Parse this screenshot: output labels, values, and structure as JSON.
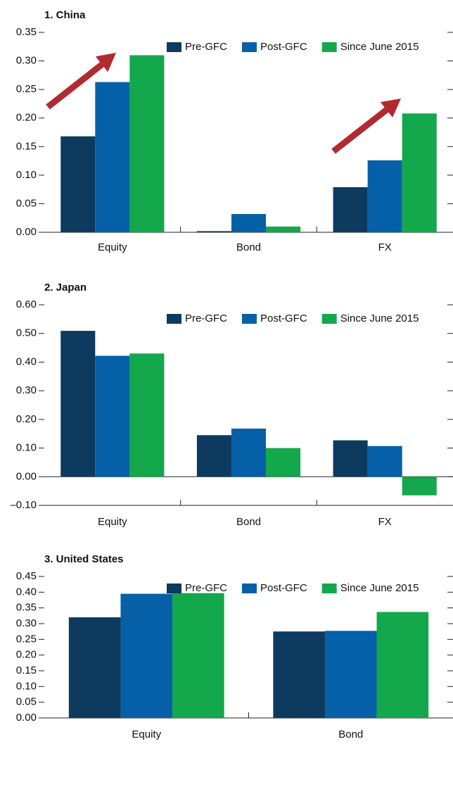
{
  "chart_data": [
    {
      "type": "bar",
      "title": "1. China",
      "categories": [
        "Equity",
        "Bond",
        "FX"
      ],
      "series": [
        {
          "name": "Pre-GFC",
          "color": "#0d3a5f",
          "values": [
            0.168,
            0.002,
            0.079
          ]
        },
        {
          "name": "Post-GFC",
          "color": "#0560a8",
          "values": [
            0.263,
            0.032,
            0.126
          ]
        },
        {
          "name": "Since June 2015",
          "color": "#12a84b",
          "values": [
            0.31,
            0.01,
            0.208
          ]
        }
      ],
      "ylim": [
        0,
        0.35
      ],
      "yticks": [
        {
          "value": 0,
          "label": "0.00"
        },
        0.05,
        {
          "value": 0.1,
          "label": "0.10"
        },
        0.15,
        {
          "value": 0.2,
          "label": "0.20"
        },
        0.25,
        {
          "value": 0.3,
          "label": "0.30"
        },
        0.35
      ]
    },
    {
      "type": "bar",
      "title": "2. Japan",
      "categories": [
        "Equity",
        "Bond",
        "FX"
      ],
      "series": [
        {
          "name": "Pre-GFC",
          "color": "#0d3a5f",
          "values": [
            0.509,
            0.145,
            0.127
          ]
        },
        {
          "name": "Post-GFC",
          "color": "#0560a8",
          "values": [
            0.422,
            0.168,
            0.107
          ]
        },
        {
          "name": "Since June 2015",
          "color": "#12a84b",
          "values": [
            0.43,
            0.1,
            -0.065
          ]
        }
      ],
      "ylim": [
        -0.1,
        0.6
      ],
      "yticks": [
        {
          "value": -0.1,
          "label": "–0.10"
        },
        {
          "value": 0,
          "label": "0.00"
        },
        {
          "value": 0.1,
          "label": "0.10"
        },
        {
          "value": 0.2,
          "label": "0.20"
        },
        {
          "value": 0.3,
          "label": "0.30"
        },
        {
          "value": 0.4,
          "label": "0.40"
        },
        {
          "value": 0.5,
          "label": "0.50"
        },
        {
          "value": 0.6,
          "label": "0.60"
        }
      ]
    },
    {
      "type": "bar",
      "title": "3. United States",
      "categories": [
        "Equity",
        "Bond"
      ],
      "series": [
        {
          "name": "Pre-GFC",
          "color": "#0d3a5f",
          "values": [
            0.32,
            0.275
          ]
        },
        {
          "name": "Post-GFC",
          "color": "#0560a8",
          "values": [
            0.395,
            0.277
          ]
        },
        {
          "name": "Since June 2015",
          "color": "#12a84b",
          "values": [
            0.397,
            0.337
          ]
        }
      ],
      "ylim": [
        0,
        0.45
      ],
      "yticks": [
        {
          "value": 0,
          "label": "0.00"
        },
        0.05,
        {
          "value": 0.1,
          "label": "0.10"
        },
        0.15,
        {
          "value": 0.2,
          "label": "0.20"
        },
        0.25,
        {
          "value": 0.3,
          "label": "0.30"
        },
        0.35,
        {
          "value": 0.4,
          "label": "0.40"
        },
        0.45
      ]
    }
  ]
}
